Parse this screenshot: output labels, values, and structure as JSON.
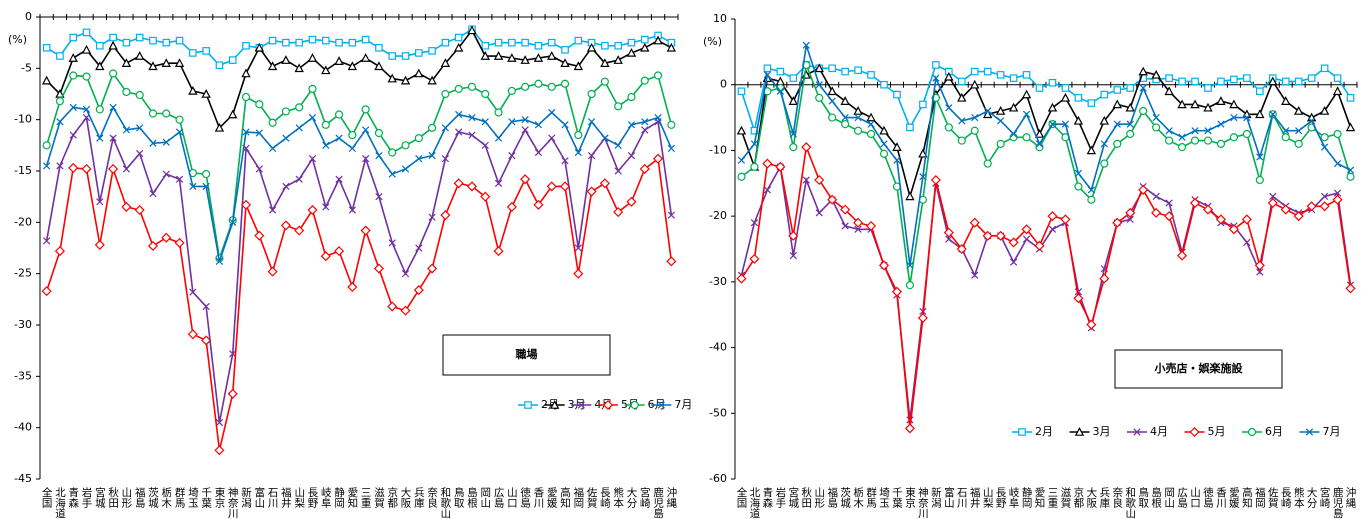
{
  "chart_data": [
    {
      "type": "line",
      "annotation": "職場",
      "ylabel": "(%)",
      "legend": "lower right",
      "grid": false,
      "categories": [
        "全国",
        "北海道",
        "青森",
        "岩手",
        "宮城",
        "秋田",
        "山形",
        "福島",
        "茨城",
        "栃木",
        "群馬",
        "埼玉",
        "千葉",
        "東京",
        "神奈川",
        "新潟",
        "富山",
        "石川",
        "福井",
        "山梨",
        "長野",
        "岐阜",
        "静岡",
        "愛知",
        "三重",
        "滋賀",
        "京都",
        "大阪",
        "兵庫",
        "奈良",
        "和歌山",
        "鳥取",
        "島根",
        "岡山",
        "広島",
        "山口",
        "徳島",
        "香川",
        "愛媛",
        "高知",
        "福岡",
        "佐賀",
        "長崎",
        "熊本",
        "大分",
        "宮崎",
        "鹿児島",
        "沖縄"
      ],
      "ylim": [
        -45,
        0
      ],
      "yticks": [
        -45,
        -40,
        -35,
        -30,
        -25,
        -20,
        -15,
        -10,
        -5,
        0
      ],
      "series": [
        {
          "name": "2月",
          "color": "#00b0f0",
          "marker": "square",
          "values": [
            -3.0,
            -3.8,
            -2.0,
            -1.5,
            -2.8,
            -2.0,
            -2.5,
            -2.0,
            -2.3,
            -2.5,
            -2.3,
            -3.5,
            -3.3,
            -4.7,
            -4.2,
            -2.8,
            -3.0,
            -2.3,
            -2.5,
            -2.5,
            -2.2,
            -2.3,
            -2.5,
            -2.5,
            -2.2,
            -3.0,
            -3.8,
            -3.8,
            -3.5,
            -3.3,
            -2.5,
            -2.0,
            -1.2,
            -2.8,
            -2.5,
            -2.5,
            -2.5,
            -2.8,
            -2.5,
            -3.2,
            -2.3,
            -2.5,
            -2.8,
            -2.8,
            -2.5,
            -2.2,
            -1.8,
            -2.5
          ]
        },
        {
          "name": "3月",
          "color": "#000000",
          "marker": "triangle",
          "values": [
            -6.2,
            -7.5,
            -4.0,
            -3.2,
            -4.8,
            -2.8,
            -4.5,
            -3.8,
            -4.8,
            -4.5,
            -4.5,
            -7.2,
            -7.5,
            -10.8,
            -9.5,
            -5.5,
            -3.0,
            -4.8,
            -4.2,
            -5.0,
            -4.0,
            -5.2,
            -4.3,
            -4.8,
            -4.0,
            -4.8,
            -6.0,
            -6.2,
            -5.5,
            -6.2,
            -4.5,
            -3.0,
            -1.3,
            -3.8,
            -3.8,
            -4.0,
            -4.2,
            -4.0,
            -3.8,
            -4.5,
            -4.8,
            -3.0,
            -4.5,
            -4.2,
            -3.5,
            -3.0,
            -2.3,
            -3.0
          ]
        },
        {
          "name": "4月",
          "color": "#7030a0",
          "marker": "x",
          "values": [
            -21.8,
            -14.5,
            -11.5,
            -9.8,
            -18.0,
            -11.8,
            -14.8,
            -13.3,
            -17.2,
            -15.3,
            -15.8,
            -26.8,
            -28.2,
            -39.5,
            -32.8,
            -12.8,
            -14.8,
            -18.8,
            -16.5,
            -15.8,
            -13.8,
            -18.5,
            -15.8,
            -18.8,
            -13.8,
            -17.5,
            -22.0,
            -25.0,
            -22.5,
            -19.5,
            -13.8,
            -11.2,
            -11.5,
            -12.5,
            -16.2,
            -13.5,
            -11.0,
            -13.2,
            -11.8,
            -14.0,
            -22.5,
            -13.5,
            -11.8,
            -15.0,
            -13.5,
            -11.0,
            -10.2,
            -19.3
          ]
        },
        {
          "name": "5月",
          "color": "#ff0000",
          "marker": "diamond",
          "values": [
            -26.7,
            -22.8,
            -14.7,
            -14.8,
            -22.2,
            -14.8,
            -18.5,
            -18.8,
            -22.3,
            -21.5,
            -22.0,
            -30.9,
            -31.5,
            -42.2,
            -36.7,
            -18.3,
            -21.3,
            -24.8,
            -20.3,
            -20.8,
            -18.8,
            -23.3,
            -22.8,
            -26.3,
            -20.8,
            -24.5,
            -28.2,
            -28.6,
            -26.6,
            -24.5,
            -19.3,
            -16.2,
            -16.5,
            -17.5,
            -22.8,
            -18.5,
            -15.8,
            -18.3,
            -16.5,
            -16.5,
            -25.0,
            -17.0,
            -16.2,
            -19.0,
            -18.0,
            -14.8,
            -13.8,
            -23.8
          ]
        },
        {
          "name": "6月",
          "color": "#00b050",
          "marker": "circle",
          "values": [
            -12.5,
            -8.2,
            -5.7,
            -5.8,
            -9.0,
            -5.5,
            -7.3,
            -7.6,
            -9.4,
            -9.4,
            -10.0,
            -15.2,
            -15.3,
            -23.5,
            -19.8,
            -7.8,
            -8.5,
            -10.3,
            -9.2,
            -8.8,
            -7.0,
            -10.5,
            -9.5,
            -11.5,
            -9.0,
            -11.3,
            -13.2,
            -12.5,
            -11.8,
            -10.8,
            -7.5,
            -7.0,
            -6.8,
            -7.5,
            -9.3,
            -7.2,
            -6.8,
            -6.5,
            -6.8,
            -6.5,
            -11.5,
            -7.5,
            -6.3,
            -8.7,
            -7.8,
            -6.2,
            -5.7,
            -10.5
          ]
        },
        {
          "name": "7月",
          "color": "#0070c0",
          "marker": "x",
          "values": [
            -14.5,
            -10.2,
            -8.8,
            -9.0,
            -11.8,
            -8.8,
            -11.0,
            -10.8,
            -12.3,
            -12.2,
            -11.2,
            -16.5,
            -16.5,
            -23.8,
            -20.0,
            -11.2,
            -11.3,
            -12.8,
            -11.8,
            -10.8,
            -9.8,
            -12.5,
            -11.8,
            -12.8,
            -11.0,
            -13.5,
            -15.3,
            -14.8,
            -13.8,
            -13.5,
            -10.8,
            -9.5,
            -9.8,
            -10.2,
            -11.8,
            -10.2,
            -10.0,
            -10.5,
            -9.3,
            -10.5,
            -13.2,
            -10.2,
            -11.8,
            -12.5,
            -10.5,
            -10.2,
            -9.8,
            -12.8
          ]
        }
      ]
    },
    {
      "type": "line",
      "annotation": "小売店・娯楽施設",
      "ylabel": "(%)",
      "legend": "lower right",
      "grid": false,
      "categories": [
        "全国",
        "北海道",
        "青森",
        "岩手",
        "宮城",
        "秋田",
        "山形",
        "福島",
        "茨城",
        "栃木",
        "群馬",
        "埼玉",
        "千葉",
        "東京",
        "神奈川",
        "新潟",
        "富山",
        "石川",
        "福井",
        "山梨",
        "長野",
        "岐阜",
        "静岡",
        "愛知",
        "三重",
        "滋賀",
        "京都",
        "大阪",
        "兵庫",
        "奈良",
        "和歌山",
        "鳥取",
        "島根",
        "岡山",
        "広島",
        "山口",
        "徳島",
        "香川",
        "愛媛",
        "高知",
        "福岡",
        "佐賀",
        "長崎",
        "熊本",
        "大分",
        "宮崎",
        "鹿児島",
        "沖縄"
      ],
      "ylim": [
        -60,
        10
      ],
      "yticks": [
        -60,
        -50,
        -40,
        -30,
        -20,
        -10,
        0,
        10
      ],
      "series": [
        {
          "name": "2月",
          "color": "#00b0f0",
          "marker": "square",
          "values": [
            -1.0,
            -7.0,
            2.5,
            2.0,
            1.0,
            3.0,
            2.5,
            2.5,
            2.0,
            2.2,
            1.5,
            0,
            -1.5,
            -6.5,
            -3.0,
            3.0,
            2.0,
            0.5,
            2.0,
            2.0,
            1.5,
            1.0,
            1.5,
            -0.5,
            0.3,
            -0.5,
            -2.0,
            -2.8,
            -1.5,
            -0.8,
            -0.5,
            1.0,
            0.8,
            1.0,
            0.5,
            0.5,
            -0.5,
            0.5,
            0.8,
            1.0,
            -1.0,
            1.0,
            0.5,
            0.5,
            1.0,
            2.5,
            1.0,
            -2.0
          ]
        },
        {
          "name": "3月",
          "color": "#000000",
          "marker": "triangle",
          "values": [
            -7.0,
            -12.5,
            1.0,
            0.5,
            -2.5,
            1.5,
            2.5,
            -1.0,
            -2.5,
            -4.0,
            -5.0,
            -7.0,
            -9.5,
            -17.0,
            -10.5,
            -1.5,
            1.2,
            -2.0,
            0,
            -4.5,
            -4.0,
            -3.5,
            -1.5,
            -7.5,
            -3.5,
            -2.0,
            -5.5,
            -10.0,
            -5.5,
            -3.0,
            -3.5,
            2.0,
            1.5,
            -1.0,
            -3.0,
            -3.0,
            -3.5,
            -2.5,
            -3.0,
            -4.5,
            -4.5,
            0.5,
            -2.5,
            -4.0,
            -5.0,
            -4.0,
            -1.0,
            -6.5
          ]
        },
        {
          "name": "4月",
          "color": "#7030a0",
          "marker": "x",
          "values": [
            -29.0,
            -21.0,
            -16.0,
            -12.5,
            -26.0,
            -14.5,
            -19.5,
            -17.5,
            -21.5,
            -22.0,
            -22.0,
            -27.5,
            -32.0,
            -51.0,
            -34.5,
            -15.0,
            -23.5,
            -25.0,
            -29.0,
            -23.0,
            -23.0,
            -27.0,
            -23.5,
            -25.0,
            -22.0,
            -21.0,
            -31.5,
            -37.0,
            -28.0,
            -21.0,
            -20.5,
            -15.5,
            -17.0,
            -18.0,
            -25.5,
            -17.5,
            -18.5,
            -21.0,
            -21.5,
            -24.0,
            -28.5,
            -17.0,
            -18.5,
            -19.5,
            -19.0,
            -17.0,
            -16.5,
            -30.5
          ]
        },
        {
          "name": "5月",
          "color": "#ff0000",
          "marker": "diamond",
          "values": [
            -29.5,
            -26.5,
            -12.0,
            -12.5,
            -23.0,
            -9.5,
            -14.5,
            -17.5,
            -19.0,
            -21.0,
            -21.5,
            -27.5,
            -31.5,
            -52.3,
            -35.5,
            -14.5,
            -22.5,
            -25.0,
            -21.0,
            -23.0,
            -23.0,
            -24.0,
            -22.0,
            -24.5,
            -20.0,
            -20.5,
            -32.5,
            -36.5,
            -29.5,
            -21.0,
            -19.5,
            -16.0,
            -19.5,
            -20.0,
            -26.0,
            -18.0,
            -19.0,
            -20.5,
            -22.0,
            -20.5,
            -27.5,
            -18.0,
            -19.0,
            -20.0,
            -18.5,
            -18.5,
            -17.5,
            -31.0
          ]
        },
        {
          "name": "6月",
          "color": "#00b050",
          "marker": "circle",
          "values": [
            -14.0,
            -12.5,
            -1.0,
            -0.5,
            -9.5,
            3.0,
            -2.0,
            -5.0,
            -6.0,
            -7.0,
            -7.5,
            -10.5,
            -15.5,
            -30.5,
            -17.5,
            -2.0,
            -6.5,
            -8.5,
            -7.0,
            -12.0,
            -9.0,
            -8.0,
            -8.0,
            -9.5,
            -6.0,
            -8.0,
            -15.5,
            -17.5,
            -12.0,
            -9.0,
            -7.5,
            -4.0,
            -6.5,
            -8.5,
            -9.5,
            -8.5,
            -8.5,
            -9.0,
            -8.0,
            -7.5,
            -14.5,
            -4.5,
            -8.0,
            -9.0,
            -6.5,
            -8.0,
            -7.5,
            -14.0
          ]
        },
        {
          "name": "7月",
          "color": "#0070c0",
          "marker": "x",
          "values": [
            -11.5,
            -9.0,
            1.5,
            -1.0,
            -7.5,
            6.0,
            0,
            -2.5,
            -5.0,
            -5.0,
            -6.0,
            -9.0,
            -11.5,
            -27.5,
            -14.0,
            1.0,
            -3.5,
            -5.5,
            -5.0,
            -4.0,
            -5.5,
            -7.5,
            -4.5,
            -9.0,
            -6.0,
            -6.0,
            -13.5,
            -16.0,
            -9.0,
            -6.0,
            -6.0,
            -0.5,
            -5.0,
            -7.0,
            -8.0,
            -7.0,
            -7.0,
            -6.0,
            -5.0,
            -5.0,
            -11.0,
            -4.5,
            -7.0,
            -7.0,
            -5.5,
            -9.5,
            -12.0,
            -13.0
          ]
        }
      ]
    }
  ]
}
